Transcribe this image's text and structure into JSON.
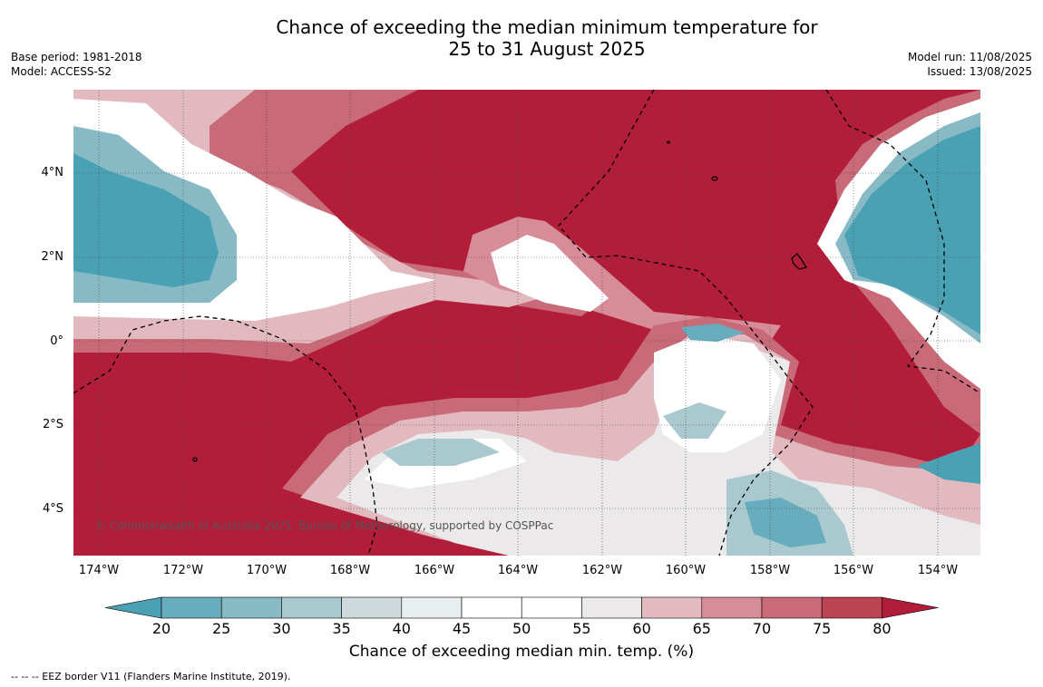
{
  "title_line1": "Chance of exceeding the median minimum temperature for",
  "title_line2": "25 to 31 August 2025",
  "base_period": "Base period: 1981-2018",
  "model": "Model: ACCESS-S2",
  "model_run": "Model run: 11/08/2025",
  "issued": "Issued: 13/08/2025",
  "copyright": "© Commonwealth of Australia 2025, Bureau of Meteorology, supported by COSPPac",
  "lat_labels": [
    "4°N",
    "2°N",
    "0°",
    "2°S",
    "4°S"
  ],
  "lon_labels": [
    "174°W",
    "172°W",
    "170°W",
    "168°W",
    "166°W",
    "164°W",
    "162°W",
    "160°W",
    "158°W",
    "156°W",
    "154°W"
  ],
  "colorbar": {
    "ticks": [
      "20",
      "25",
      "30",
      "35",
      "40",
      "45",
      "50",
      "55",
      "60",
      "65",
      "70",
      "75",
      "80"
    ],
    "colors": [
      "#4aa1b3",
      "#67adbd",
      "#88bac6",
      "#aac9cf",
      "#cdd9dc",
      "#e7eef0",
      "#ffffff",
      "#ffffff",
      "#ebe9ea",
      "#e1b9bf",
      "#d68d98",
      "#c86a77",
      "#bb4352",
      "#b21e3a"
    ],
    "title": "Chance of exceeding median min. temp. (%)"
  },
  "footnote": "--  --  -- EEZ border V11 (Flanders Marine Institute, 2019)."
}
